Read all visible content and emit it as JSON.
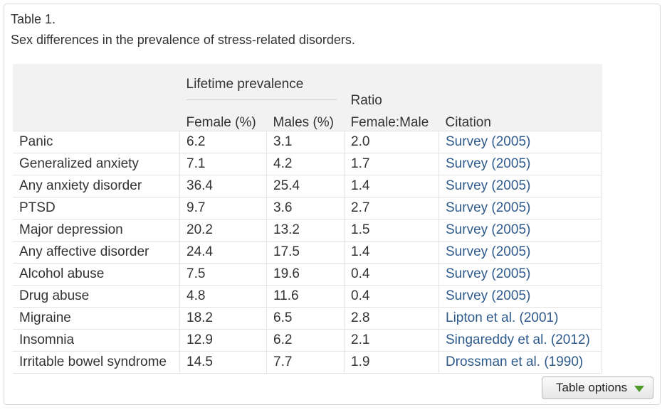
{
  "caption": {
    "label": "Table 1.",
    "title": "Sex differences in the prevalence of stress-related disorders."
  },
  "headers": {
    "lifetime_prevalence": "Lifetime prevalence",
    "ratio": "Ratio",
    "female": "Female (%)",
    "males": "Males (%)",
    "female_male": "Female:Male",
    "citation": "Citation"
  },
  "rows": [
    {
      "condition": "Panic",
      "female": "6.2",
      "male": "3.1",
      "ratio": "2.0",
      "citation": "Survey (2005)"
    },
    {
      "condition": "Generalized anxiety",
      "female": "7.1",
      "male": "4.2",
      "ratio": "1.7",
      "citation": "Survey (2005)"
    },
    {
      "condition": "Any anxiety disorder",
      "female": "36.4",
      "male": "25.4",
      "ratio": "1.4",
      "citation": "Survey (2005)"
    },
    {
      "condition": "PTSD",
      "female": "9.7",
      "male": "3.6",
      "ratio": "2.7",
      "citation": "Survey (2005)"
    },
    {
      "condition": "Major depression",
      "female": "20.2",
      "male": "13.2",
      "ratio": "1.5",
      "citation": "Survey (2005)"
    },
    {
      "condition": "Any affective disorder",
      "female": "24.4",
      "male": "17.5",
      "ratio": "1.4",
      "citation": "Survey (2005)"
    },
    {
      "condition": "Alcohol abuse",
      "female": "7.5",
      "male": "19.6",
      "ratio": "0.4",
      "citation": "Survey (2005)"
    },
    {
      "condition": "Drug abuse",
      "female": "4.8",
      "male": "11.6",
      "ratio": "0.4",
      "citation": "Survey (2005)"
    },
    {
      "condition": "Migraine",
      "female": "18.2",
      "male": "6.5",
      "ratio": "2.8",
      "citation": "Lipton et al. (2001)"
    },
    {
      "condition": "Insomnia",
      "female": "12.9",
      "male": "6.2",
      "ratio": "2.1",
      "citation": "Singareddy et al. (2012)"
    },
    {
      "condition": "Irritable bowel syndrome",
      "female": "14.5",
      "male": "7.7",
      "ratio": "1.9",
      "citation": "Drossman et al. (1990)"
    }
  ],
  "controls": {
    "table_options_label": "Table options",
    "dropdown_icon": "triangle-down-icon",
    "link_color": "#2e5a8c",
    "icon_color": "#4f9a2a"
  }
}
